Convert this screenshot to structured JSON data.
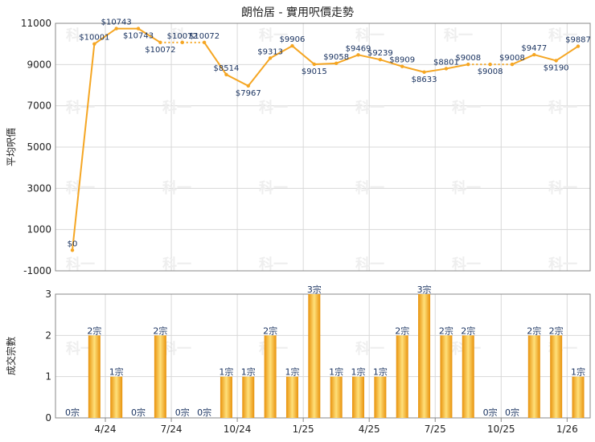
{
  "chart_data": [
    {
      "type": "line",
      "title": "朗怡居 - 實用呎價走勢",
      "ylabel": "平均呎價",
      "ylim": [
        -1000,
        11000
      ],
      "yticks": [
        -1000,
        1000,
        3000,
        5000,
        7000,
        9000,
        11000
      ],
      "color": "#f5a623",
      "values": [
        0,
        10001,
        10743,
        10743,
        10072,
        10072,
        10072,
        8514,
        7967,
        9313,
        9906,
        9015,
        9058,
        9469,
        9239,
        8909,
        8633,
        8801,
        9008,
        9008,
        9008,
        9477,
        9190,
        9887
      ],
      "labels": [
        "$0",
        "$10001",
        "$10743",
        "$10743",
        "$10072",
        "$10072",
        "$10072",
        "$8514",
        "$7967",
        "$9313",
        "$9906",
        "$9015",
        "$9058",
        "$9469",
        "$9239",
        "$8909",
        "$8633",
        "$8801",
        "$9008",
        "$9008",
        "$9008",
        "$9477",
        "$9190",
        "$9887"
      ],
      "dashed_segments": [
        [
          4,
          5
        ],
        [
          5,
          6
        ],
        [
          18,
          19
        ],
        [
          19,
          20
        ]
      ]
    },
    {
      "type": "bar",
      "ylabel": "成交宗數",
      "ylim": [
        0,
        3
      ],
      "yticks": [
        0,
        1,
        2,
        3
      ],
      "x_tick_labels": [
        "4/24",
        "7/24",
        "10/24",
        "1/25",
        "4/25",
        "7/25",
        "10/25",
        "1/26"
      ],
      "x_tick_positions": [
        2,
        5,
        8,
        11,
        14,
        17,
        20,
        23
      ],
      "values": [
        0,
        2,
        1,
        0,
        2,
        0,
        0,
        1,
        1,
        2,
        1,
        3,
        1,
        1,
        1,
        2,
        3,
        2,
        2,
        0,
        0,
        2,
        2,
        1
      ],
      "labels": [
        "0宗",
        "2宗",
        "1宗",
        "0宗",
        "2宗",
        "0宗",
        "0宗",
        "1宗",
        "1宗",
        "2宗",
        "1宗",
        "3宗",
        "1宗",
        "1宗",
        "1宗",
        "2宗",
        "3宗",
        "2宗",
        "2宗",
        "0宗",
        "0宗",
        "2宗",
        "2宗",
        "1宗"
      ]
    }
  ],
  "watermark": "科一"
}
